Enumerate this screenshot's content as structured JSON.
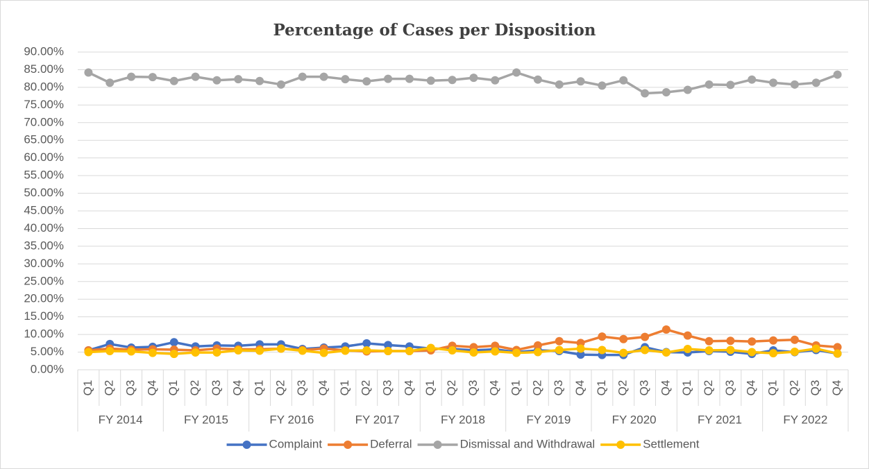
{
  "chart_data": {
    "type": "line",
    "title": "Percentage of Cases per Disposition",
    "categories": [
      "Q1",
      "Q2",
      "Q3",
      "Q4",
      "Q1",
      "Q2",
      "Q3",
      "Q4",
      "Q1",
      "Q2",
      "Q3",
      "Q4",
      "Q1",
      "Q2",
      "Q3",
      "Q4",
      "Q1",
      "Q2",
      "Q3",
      "Q4",
      "Q1",
      "Q2",
      "Q3",
      "Q4",
      "Q1",
      "Q2",
      "Q3",
      "Q4",
      "Q1",
      "Q2",
      "Q3",
      "Q4",
      "Q1",
      "Q2",
      "Q3",
      "Q4"
    ],
    "category_groups": [
      "FY 2014",
      "FY 2015",
      "FY 2016",
      "FY 2017",
      "FY 2018",
      "FY 2019",
      "FY 2020",
      "FY 2021",
      "FY 2022"
    ],
    "series": [
      {
        "name": "Complaint",
        "color": "#4472c4",
        "values": [
          5.5,
          7.3,
          6.3,
          6.5,
          7.8,
          6.6,
          6.9,
          6.8,
          7.2,
          7.2,
          5.9,
          6.3,
          6.6,
          7.5,
          7.0,
          6.6,
          6.0,
          5.9,
          5.5,
          5.8,
          5.0,
          5.5,
          5.3,
          4.3,
          4.2,
          4.2,
          6.4,
          5.0,
          4.9,
          5.3,
          5.1,
          4.5,
          5.5,
          5.0,
          5.6,
          4.6
        ]
      },
      {
        "name": "Deferral",
        "color": "#ed7d31",
        "values": [
          5.5,
          6.0,
          5.7,
          5.8,
          5.7,
          5.5,
          6.0,
          5.8,
          5.8,
          6.0,
          5.6,
          6.0,
          5.5,
          5.2,
          5.3,
          5.3,
          5.5,
          6.8,
          6.4,
          6.8,
          5.6,
          6.9,
          8.1,
          7.6,
          9.4,
          8.7,
          9.3,
          11.4,
          9.7,
          8.1,
          8.2,
          8.0,
          8.3,
          8.5,
          6.9,
          6.4
        ]
      },
      {
        "name": "Dismissal and Withdrawal",
        "color": "#a5a5a5",
        "values": [
          84.2,
          81.3,
          83.0,
          82.9,
          81.8,
          83.0,
          82.0,
          82.3,
          81.8,
          80.8,
          83.0,
          83.0,
          82.3,
          81.7,
          82.4,
          82.4,
          81.9,
          82.1,
          82.7,
          82.0,
          84.2,
          82.2,
          80.8,
          81.7,
          80.5,
          82.0,
          78.3,
          78.6,
          79.3,
          80.8,
          80.7,
          82.2,
          81.3,
          80.8,
          81.3,
          83.6
        ]
      },
      {
        "name": "Settlement",
        "color": "#ffc000",
        "values": [
          5.0,
          5.3,
          5.2,
          4.8,
          4.5,
          4.9,
          4.9,
          5.5,
          5.4,
          6.0,
          5.4,
          4.8,
          5.4,
          5.5,
          5.3,
          5.3,
          6.2,
          5.5,
          4.9,
          5.2,
          4.8,
          5.0,
          5.6,
          6.0,
          5.6,
          4.8,
          5.6,
          4.9,
          5.9,
          5.5,
          5.6,
          5.0,
          4.7,
          5.1,
          6.0,
          4.6
        ]
      }
    ],
    "ylim": [
      0,
      90
    ],
    "yticks": [
      {
        "value": 0,
        "label": "0.00%"
      },
      {
        "value": 5,
        "label": "5.00%"
      },
      {
        "value": 10,
        "label": "10.00%"
      },
      {
        "value": 15,
        "label": "15.00%"
      },
      {
        "value": 20,
        "label": "20.00%"
      },
      {
        "value": 25,
        "label": "25.00%"
      },
      {
        "value": 30,
        "label": "30.00%"
      },
      {
        "value": 35,
        "label": "35.00%"
      },
      {
        "value": 40,
        "label": "40.00%"
      },
      {
        "value": 45,
        "label": "45.00%"
      },
      {
        "value": 50,
        "label": "50.00%"
      },
      {
        "value": 55,
        "label": "55.00%"
      },
      {
        "value": 60,
        "label": "60.00%"
      },
      {
        "value": 65,
        "label": "65.00%"
      },
      {
        "value": 70,
        "label": "70.00%"
      },
      {
        "value": 75,
        "label": "75.00%"
      },
      {
        "value": 80,
        "label": "80.00%"
      },
      {
        "value": 85,
        "label": "85.00%"
      },
      {
        "value": 90,
        "label": "90.00%"
      }
    ],
    "grid": true,
    "legend": "bottom"
  }
}
